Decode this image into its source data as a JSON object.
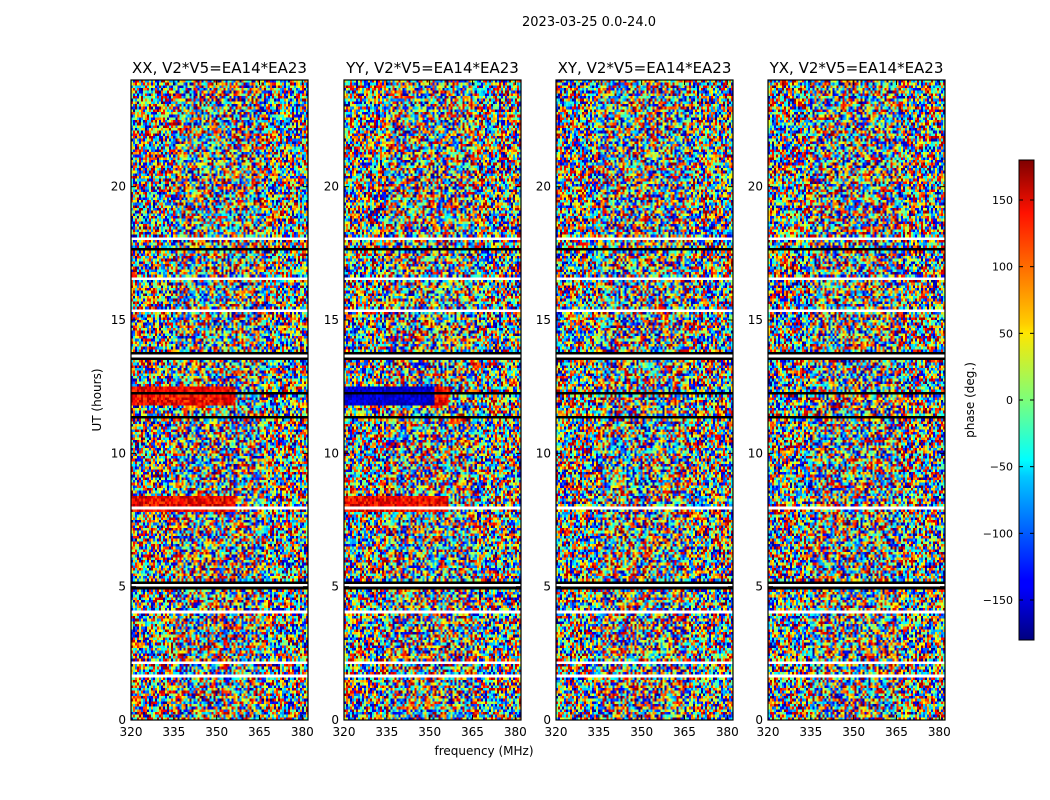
{
  "chart_data": {
    "type": "heatmap",
    "title": "2023-03-25 0.0-24.0",
    "xlabel": "frequency (MHz)",
    "ylabel": "UT (hours)",
    "xlim": [
      320,
      382
    ],
    "ylim": [
      0,
      24
    ],
    "x_ticks": [
      320,
      335,
      350,
      365,
      380
    ],
    "y_ticks": [
      0,
      5,
      10,
      15,
      20
    ],
    "panels": [
      {
        "title": "XX, V2*V5=EA14*EA23",
        "product": "XX"
      },
      {
        "title": "YY, V2*V5=EA14*EA23",
        "product": "YY"
      },
      {
        "title": "XY, V2*V5=EA14*EA23",
        "product": "XY"
      },
      {
        "title": "YX, V2*V5=EA14*EA23",
        "product": "YX"
      }
    ],
    "colorbar": {
      "label": "phase (deg.)",
      "range": [
        -180,
        180
      ],
      "ticks": [
        -150,
        -100,
        -50,
        0,
        50,
        100,
        150
      ],
      "colormap": "jet"
    },
    "flagged_ut_bands": [
      [
        5.0,
        5.2
      ],
      [
        13.6,
        13.8
      ]
    ]
  }
}
